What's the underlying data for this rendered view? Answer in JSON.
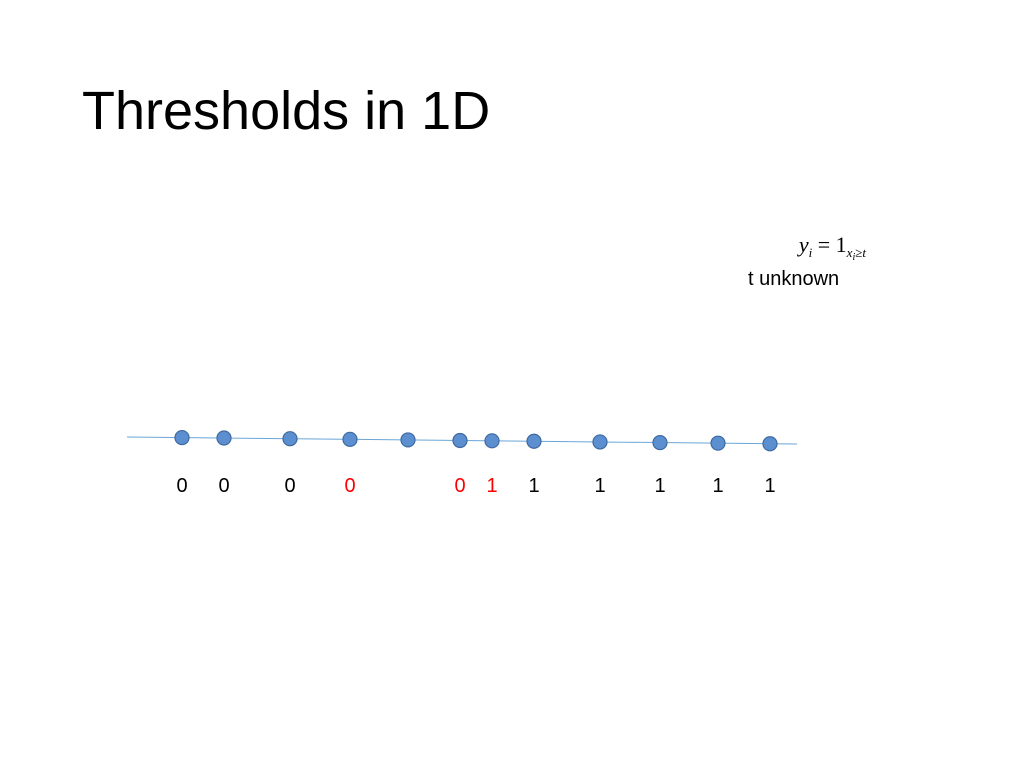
{
  "slide": {
    "title": "Thresholds in 1D",
    "formula": {
      "lhs": "y",
      "lhs_sub": "i",
      "equals": "=",
      "indicator": "1",
      "cond_var": "x",
      "cond_var_sub": "i",
      "cond_rel": "≥",
      "cond_rhs": "t"
    },
    "note": "t unknown"
  },
  "points": [
    {
      "label": "0",
      "highlight": false
    },
    {
      "label": "0",
      "highlight": false
    },
    {
      "label": "0",
      "highlight": false
    },
    {
      "label": "0",
      "highlight": true
    },
    {
      "label": "",
      "highlight": false
    },
    {
      "label": "0",
      "highlight": true
    },
    {
      "label": "1",
      "highlight": true
    },
    {
      "label": "1",
      "highlight": false
    },
    {
      "label": "1",
      "highlight": false
    },
    {
      "label": "1",
      "highlight": false
    },
    {
      "label": "1",
      "highlight": false
    },
    {
      "label": "1",
      "highlight": false
    }
  ],
  "colors": {
    "line": "#6aa6d8",
    "point_fill": "#5b8fcf",
    "point_stroke": "#3f6aa0",
    "label_normal": "#000000",
    "label_highlight": "#ff0000"
  }
}
